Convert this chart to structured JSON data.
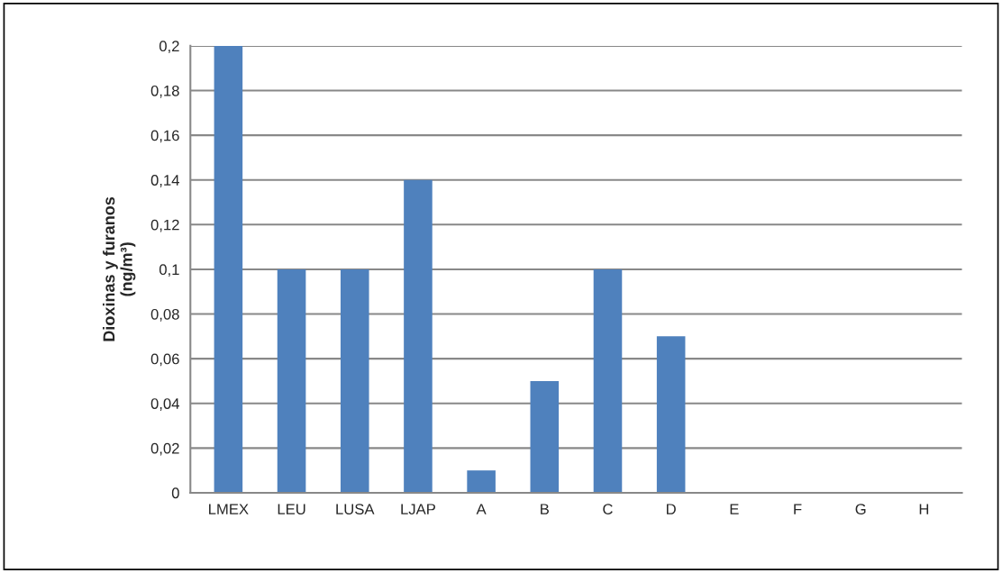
{
  "chart_data": {
    "type": "bar",
    "ylabel": "Dioxinas y furanos\n(ng/m³)",
    "categories": [
      "LMEX",
      "LEU",
      "LUSA",
      "LJAP",
      "A",
      "B",
      "C",
      "D",
      "E",
      "F",
      "G",
      "H"
    ],
    "values": [
      0.2,
      0.1,
      0.1,
      0.14,
      0.01,
      0.05,
      0.1,
      0.07,
      0,
      0,
      0,
      0
    ],
    "color": "#4f81bd",
    "ylim": [
      0,
      0.2
    ],
    "yticks": [
      {
        "value": 0,
        "label": "0"
      },
      {
        "value": 0.02,
        "label": "0,02"
      },
      {
        "value": 0.04,
        "label": "0,04"
      },
      {
        "value": 0.06,
        "label": "0,06"
      },
      {
        "value": 0.08,
        "label": "0,08"
      },
      {
        "value": 0.1,
        "label": "0,1"
      },
      {
        "value": 0.12,
        "label": "0,12"
      },
      {
        "value": 0.14,
        "label": "0,14"
      },
      {
        "value": 0.16,
        "label": "0,16"
      },
      {
        "value": 0.18,
        "label": "0,18"
      },
      {
        "value": 0.2,
        "label": "0,2"
      }
    ],
    "grid": "y"
  }
}
